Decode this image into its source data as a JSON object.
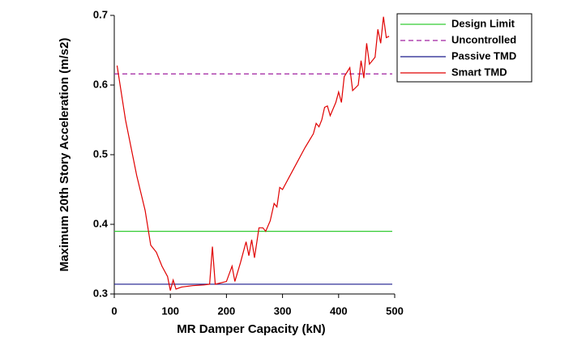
{
  "chart_data": {
    "type": "line",
    "xlabel": "MR Damper Capacity (kN)",
    "ylabel": "Maximum 20th Story Acceleration (m/s2)",
    "xlim": [
      0,
      500
    ],
    "xticks": [
      0,
      100,
      200,
      300,
      400,
      500
    ],
    "ylim": [
      0.3,
      0.7
    ],
    "yticks": [
      0.3,
      0.4,
      0.5,
      0.6,
      0.7
    ],
    "legend": "outside-top-right",
    "series": [
      {
        "name": "Design Limit",
        "color": "#33cc33",
        "style": "solid",
        "values": [
          0.39
        ]
      },
      {
        "name": "Uncontrolled",
        "color": "#a020a0",
        "style": "dashed",
        "values": [
          0.616
        ]
      },
      {
        "name": "Passive TMD",
        "color": "#1a1a8c",
        "style": "solid",
        "values": [
          0.314
        ]
      },
      {
        "name": "Smart TMD",
        "color": "#e00000",
        "style": "solid",
        "x": [
          5,
          20,
          40,
          55,
          65,
          75,
          85,
          95,
          100,
          105,
          110,
          120,
          140,
          160,
          170,
          175,
          180,
          200,
          210,
          215,
          225,
          235,
          240,
          245,
          250,
          258,
          265,
          270,
          278,
          285,
          290,
          295,
          300,
          320,
          340,
          355,
          360,
          365,
          370,
          375,
          380,
          385,
          395,
          400,
          405,
          410,
          420,
          425,
          435,
          440,
          445,
          450,
          455,
          465,
          470,
          475,
          480,
          485,
          490
        ],
        "values": [
          0.628,
          0.55,
          0.47,
          0.42,
          0.37,
          0.36,
          0.34,
          0.325,
          0.305,
          0.32,
          0.307,
          0.31,
          0.312,
          0.313,
          0.314,
          0.368,
          0.314,
          0.318,
          0.34,
          0.318,
          0.345,
          0.375,
          0.355,
          0.378,
          0.352,
          0.395,
          0.395,
          0.39,
          0.405,
          0.43,
          0.425,
          0.453,
          0.45,
          0.48,
          0.51,
          0.53,
          0.545,
          0.54,
          0.55,
          0.568,
          0.57,
          0.556,
          0.575,
          0.59,
          0.575,
          0.612,
          0.625,
          0.592,
          0.6,
          0.635,
          0.61,
          0.66,
          0.63,
          0.64,
          0.68,
          0.66,
          0.698,
          0.668,
          0.67
        ]
      }
    ]
  }
}
